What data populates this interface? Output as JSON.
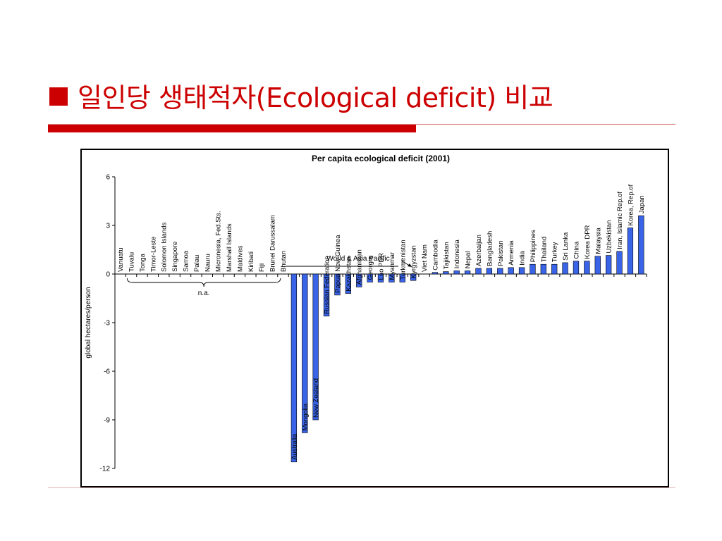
{
  "slide": {
    "title_bullet": "■",
    "title": "일인당 생태적자(Ecological deficit) 비교"
  },
  "chart_data": {
    "type": "bar",
    "title": "Per capita ecological deficit (2001)",
    "ylabel": "global hectares/person",
    "ylim": [
      -12,
      6
    ],
    "yticks": [
      6,
      3,
      0,
      -3,
      -6,
      -9,
      -12
    ],
    "grid": false,
    "legend": "none",
    "bar_color": "#3a64e8",
    "categories": [
      "Vanuatu",
      "Tuvalu",
      "Tonga",
      "Timor-Leste",
      "Solomon Islands",
      "Singapore",
      "Samoa",
      "Palau",
      "Nauru",
      "Micronesia, Fed.Sts.",
      "Marshall Islands",
      "Maldives",
      "Kiribati",
      "Fiji",
      "Brunei Darussalam",
      "Bhutan",
      "Australia",
      "Mongolia",
      "New Zealand",
      "Russian Federation",
      "Papua New Guinea",
      "Kazakhstan",
      "Afghanistan",
      "Georgia",
      "Lao PDR",
      "Myanmar",
      "Turkmenistan",
      "Kyrgyzstan",
      "Viet Nam",
      "Cambodia",
      "Tajikistan",
      "Indonesia",
      "Nepal",
      "Azerbaijan",
      "Bangladesh",
      "Pakistan",
      "Armenia",
      "India",
      "Philippines",
      "Thailand",
      "Turkey",
      "Sri Lanka",
      "China",
      "Korea DPR",
      "Malaysia",
      "Uzbekistan",
      "Iran, Islamic Rep.of",
      "Korea, Rep.of",
      "Japan"
    ],
    "values": [
      null,
      null,
      null,
      null,
      null,
      null,
      null,
      null,
      null,
      null,
      null,
      null,
      null,
      null,
      null,
      null,
      -11.6,
      -9.8,
      -9.0,
      -2.6,
      -1.3,
      -1.2,
      -0.8,
      -0.5,
      -0.5,
      -0.5,
      -0.5,
      -0.4,
      0.0,
      0.1,
      0.15,
      0.2,
      0.2,
      0.35,
      0.35,
      0.35,
      0.4,
      0.4,
      0.6,
      0.6,
      0.6,
      0.7,
      0.8,
      0.8,
      1.1,
      1.15,
      1.4,
      2.85,
      3.6
    ],
    "annotations": {
      "na_label": "n.a.",
      "region_label": "World & Asia Pacific"
    }
  }
}
